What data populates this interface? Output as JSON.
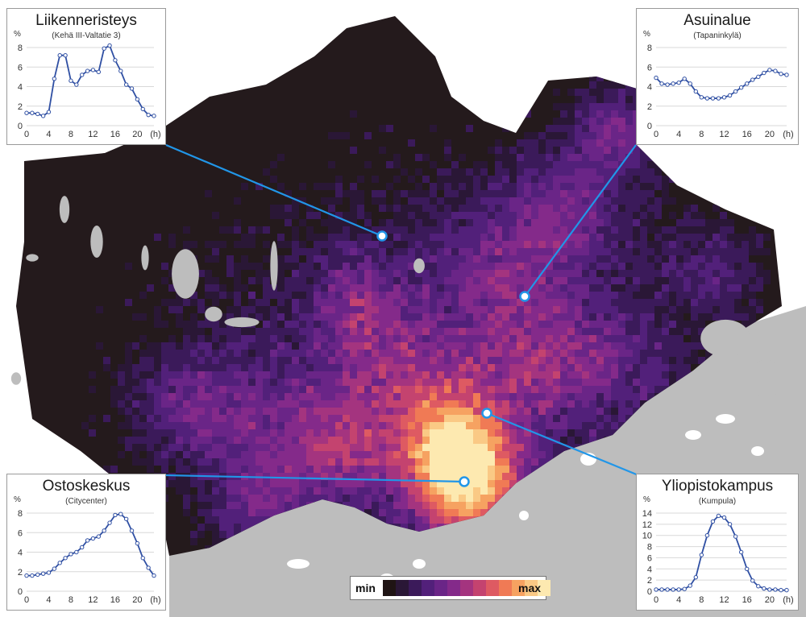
{
  "legend": {
    "min_label": "min",
    "max_label": "max",
    "colors": [
      "#1f1414",
      "#2a1736",
      "#3b1a5a",
      "#52207a",
      "#6a2587",
      "#842a8a",
      "#a4347f",
      "#c4436f",
      "#de5a62",
      "#f07a55",
      "#f6a261",
      "#fac985",
      "#fde9b0"
    ]
  },
  "map": {
    "water_color": "#bdbdbd",
    "land_base_color": "#241a1c",
    "callout_line_color": "#2196e8",
    "markers": [
      {
        "name": "Liikenneristeys",
        "x": 474,
        "y": 293
      },
      {
        "name": "Asuinalue",
        "x": 651,
        "y": 368
      },
      {
        "name": "Yliopistokampus",
        "x": 604,
        "y": 513
      },
      {
        "name": "Ostoskeskus",
        "x": 576,
        "y": 598
      }
    ]
  },
  "charts": [
    {
      "title": "Liikenneristeys",
      "subtitle": "(Kehä III-Valtatie 3)",
      "y_unit": "%",
      "x_unit": "(h)",
      "yticks": [
        0,
        2,
        4,
        6,
        8
      ],
      "xticks": [
        0,
        4,
        8,
        12,
        16,
        20
      ]
    },
    {
      "title": "Asuinalue",
      "subtitle": "(Tapaninkylä)",
      "y_unit": "%",
      "x_unit": "(h)",
      "yticks": [
        0,
        2,
        4,
        6,
        8
      ],
      "xticks": [
        0,
        4,
        8,
        12,
        16,
        20
      ]
    },
    {
      "title": "Ostoskeskus",
      "subtitle": "(Citycenter)",
      "y_unit": "%",
      "x_unit": "(h)",
      "yticks": [
        0,
        2,
        4,
        6,
        8
      ],
      "xticks": [
        0,
        4,
        8,
        12,
        16,
        20
      ]
    },
    {
      "title": "Yliopistokampus",
      "subtitle": "(Kumpula)",
      "y_unit": "%",
      "x_unit": "(h)",
      "yticks": [
        0,
        2,
        4,
        6,
        8,
        10,
        12,
        14
      ],
      "xticks": [
        0,
        4,
        8,
        12,
        16,
        20
      ]
    }
  ],
  "chart_data": [
    {
      "type": "line",
      "title": "Liikenneristeys",
      "subtitle": "(Kehä III-Valtatie 3)",
      "ylabel": "%",
      "xlabel": "(h)",
      "ylim": [
        0,
        8
      ],
      "x": [
        0,
        1,
        2,
        3,
        4,
        5,
        6,
        7,
        8,
        9,
        10,
        11,
        12,
        13,
        14,
        15,
        16,
        17,
        18,
        19,
        20,
        21,
        22,
        23
      ],
      "series": [
        {
          "values": [
            1.3,
            1.3,
            1.2,
            1.0,
            1.4,
            4.8,
            7.2,
            7.2,
            4.6,
            4.2,
            5.2,
            5.6,
            5.7,
            5.5,
            7.9,
            8.2,
            6.7,
            5.6,
            4.2,
            3.8,
            2.7,
            1.7,
            1.1,
            1.0
          ]
        }
      ]
    },
    {
      "type": "line",
      "title": "Asuinalue",
      "subtitle": "(Tapaninkylä)",
      "ylabel": "%",
      "xlabel": "(h)",
      "ylim": [
        0,
        8
      ],
      "x": [
        0,
        1,
        2,
        3,
        4,
        5,
        6,
        7,
        8,
        9,
        10,
        11,
        12,
        13,
        14,
        15,
        16,
        17,
        18,
        19,
        20,
        21,
        22,
        23
      ],
      "series": [
        {
          "values": [
            4.9,
            4.3,
            4.2,
            4.3,
            4.4,
            4.8,
            4.3,
            3.5,
            2.9,
            2.8,
            2.8,
            2.8,
            2.9,
            3.1,
            3.5,
            3.9,
            4.3,
            4.7,
            5.0,
            5.4,
            5.7,
            5.6,
            5.3,
            5.2
          ]
        }
      ]
    },
    {
      "type": "line",
      "title": "Ostoskeskus",
      "subtitle": "(Citycenter)",
      "ylabel": "%",
      "xlabel": "(h)",
      "ylim": [
        0,
        8
      ],
      "x": [
        0,
        1,
        2,
        3,
        4,
        5,
        6,
        7,
        8,
        9,
        10,
        11,
        12,
        13,
        14,
        15,
        16,
        17,
        18,
        19,
        20,
        21,
        22,
        23
      ],
      "series": [
        {
          "values": [
            1.6,
            1.6,
            1.7,
            1.8,
            1.9,
            2.3,
            2.9,
            3.4,
            3.8,
            4.0,
            4.5,
            5.2,
            5.4,
            5.6,
            6.2,
            7.0,
            7.8,
            7.9,
            7.4,
            6.2,
            4.9,
            3.4,
            2.4,
            1.6
          ]
        }
      ]
    },
    {
      "type": "line",
      "title": "Yliopistokampus",
      "subtitle": "(Kumpula)",
      "ylabel": "%",
      "xlabel": "(h)",
      "ylim": [
        0,
        14
      ],
      "x": [
        0,
        1,
        2,
        3,
        4,
        5,
        6,
        7,
        8,
        9,
        10,
        11,
        12,
        13,
        14,
        15,
        16,
        17,
        18,
        19,
        20,
        21,
        22,
        23
      ],
      "series": [
        {
          "values": [
            0.3,
            0.3,
            0.3,
            0.3,
            0.3,
            0.4,
            1.0,
            2.5,
            6.5,
            10.0,
            12.5,
            13.5,
            13.2,
            12.0,
            9.8,
            7.0,
            4.0,
            1.9,
            0.9,
            0.5,
            0.3,
            0.3,
            0.2,
            0.2
          ]
        }
      ]
    }
  ]
}
